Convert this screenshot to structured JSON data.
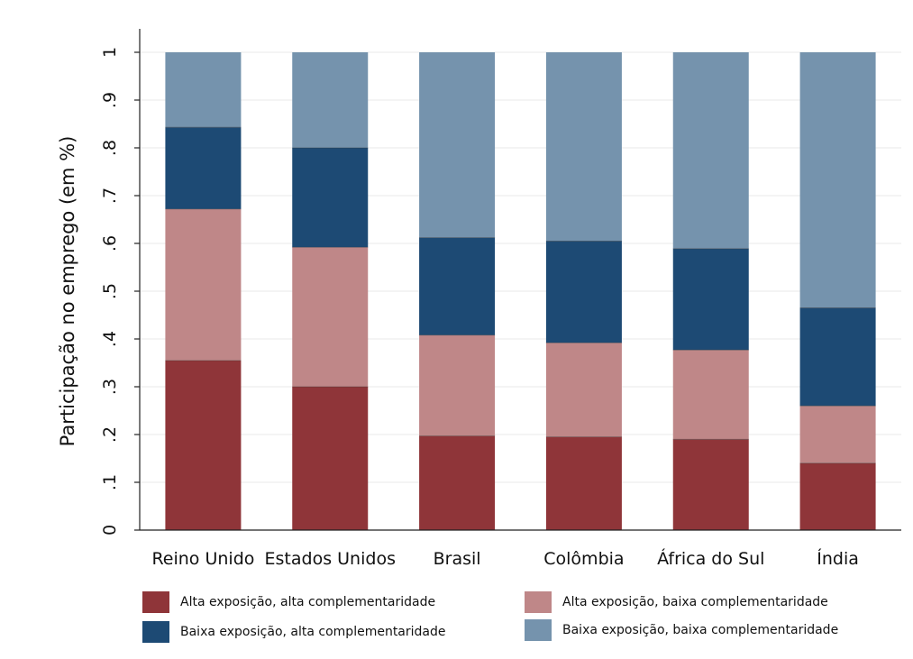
{
  "chart_data": {
    "type": "bar",
    "stacked": true,
    "title": "",
    "xlabel": "",
    "ylabel": "Participação no emprego (em %)",
    "ylim": [
      0,
      1
    ],
    "yticks": [
      "0",
      ".1",
      ".2",
      ".3",
      ".4",
      ".5",
      ".6",
      ".7",
      ".8",
      ".9",
      "1"
    ],
    "grid": true,
    "legend_position": "bottom",
    "categories": [
      "Reino Unido",
      "Estados Unidos",
      "Brasil",
      "Colômbia",
      "África do Sul",
      "Índia"
    ],
    "series": [
      {
        "name": "Alta exposição, alta complementaridade",
        "color": "#8f3539",
        "values": [
          0.355,
          0.3,
          0.197,
          0.195,
          0.19,
          0.14
        ]
      },
      {
        "name": "Alta exposição, baixa complementaridade",
        "color": "#bf8788",
        "values": [
          0.317,
          0.292,
          0.211,
          0.197,
          0.187,
          0.12
        ]
      },
      {
        "name": "Baixa exposição, alta complementaridade",
        "color": "#1d4a74",
        "values": [
          0.171,
          0.208,
          0.204,
          0.213,
          0.212,
          0.205
        ]
      },
      {
        "name": "Baixa exposição, baixa complementaridade",
        "color": "#7593ad",
        "values": [
          0.157,
          0.2,
          0.388,
          0.395,
          0.411,
          0.535
        ]
      }
    ]
  }
}
